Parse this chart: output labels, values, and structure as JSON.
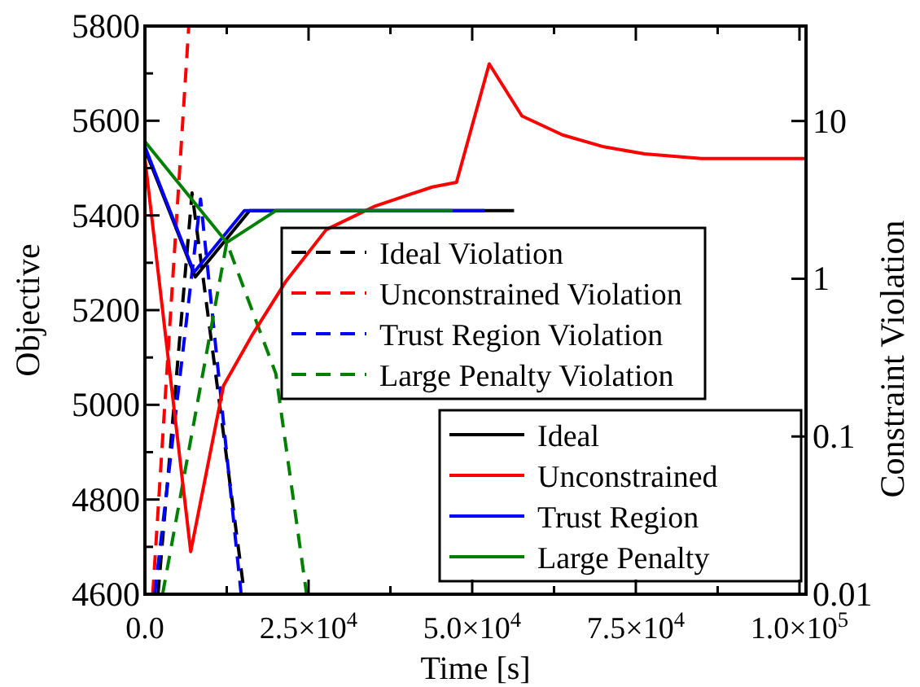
{
  "chart_data": {
    "type": "line",
    "xlabel": "Time [s]",
    "ylabel": "Objective",
    "y2label": "Constraint Violation",
    "xlim": [
      0,
      101000
    ],
    "xticks": [
      {
        "value": 0,
        "label": "0.0"
      },
      {
        "value": 12500,
        "label": null
      },
      {
        "value": 25000,
        "label": "2.5×10$^{4}$"
      },
      {
        "value": 37500,
        "label": null
      },
      {
        "value": 50000,
        "label": "5.0×10$^{4}$"
      },
      {
        "value": 62500,
        "label": null
      },
      {
        "value": 75000,
        "label": "7.5×10$^{4}$"
      },
      {
        "value": 87500,
        "label": null
      },
      {
        "value": 100000,
        "label": "1.0×10$^{5}$"
      }
    ],
    "ylim": [
      4600,
      5800
    ],
    "yticks": [
      4600,
      {
        "value": 4700,
        "label": null
      },
      4800,
      {
        "value": 4900,
        "label": null
      },
      5000,
      {
        "value": 5100,
        "label": null
      },
      5200,
      {
        "value": 5300,
        "label": null
      },
      5400,
      {
        "value": 5500,
        "label": null
      },
      5600,
      {
        "value": 5700,
        "label": null
      },
      5800
    ],
    "y2lim": [
      0.01,
      40
    ],
    "y2ticks": [
      0.01,
      0.1,
      1,
      10
    ],
    "log": "y2",
    "grid": false,
    "legend": "right",
    "series": [
      {
        "name": "Ideal Violation",
        "color": "#000000",
        "axis": "y2",
        "line_style": "dashed",
        "x": [
          2000,
          7200,
          15200
        ],
        "values": [
          0.01,
          3.5,
          0.01
        ]
      },
      {
        "name": "Unconstrained Violation",
        "color": "#ff0000",
        "axis": "y2",
        "line_style": "dashed",
        "x": [
          1200,
          6700
        ],
        "values": [
          0.01,
          40
        ]
      },
      {
        "name": "Trust Region Violation",
        "color": "#0000ff",
        "axis": "y2",
        "line_style": "dashed",
        "x": [
          1500,
          8500,
          14700
        ],
        "values": [
          0.01,
          3.2,
          0.01
        ]
      },
      {
        "name": "Large Penalty Violation",
        "color": "#008000",
        "axis": "y2",
        "line_style": "dashed",
        "x": [
          2700,
          12500,
          20000,
          24700
        ],
        "values": [
          0.01,
          1.7,
          0.25,
          0.01
        ]
      },
      {
        "name": "Ideal",
        "color": "#000000",
        "line_style": "solid",
        "x": [
          0,
          7700,
          16000,
          56400
        ],
        "values": [
          5540,
          5270,
          5410,
          5410
        ]
      },
      {
        "name": "Unconstrained",
        "color": "#ff0000",
        "line_style": "solid",
        "x": [
          0,
          7000,
          12000,
          16500,
          21500,
          27700,
          35200,
          43900,
          47600,
          52600,
          57600,
          63800,
          70100,
          76300,
          85000,
          101000
        ],
        "values": [
          5520,
          4690,
          5040,
          5150,
          5260,
          5370,
          5420,
          5460,
          5470,
          5720,
          5610,
          5570,
          5545,
          5530,
          5520,
          5520
        ]
      },
      {
        "name": "Trust Region",
        "color": "#0000ff",
        "line_style": "solid",
        "x": [
          0,
          7500,
          15200,
          51900
        ],
        "values": [
          5545,
          5280,
          5410,
          5410
        ]
      },
      {
        "name": "Large Penalty",
        "color": "#008000",
        "line_style": "solid",
        "x": [
          0,
          12500,
          20000,
          47000
        ],
        "values": [
          5556,
          5343,
          5410,
          5410
        ]
      }
    ]
  }
}
